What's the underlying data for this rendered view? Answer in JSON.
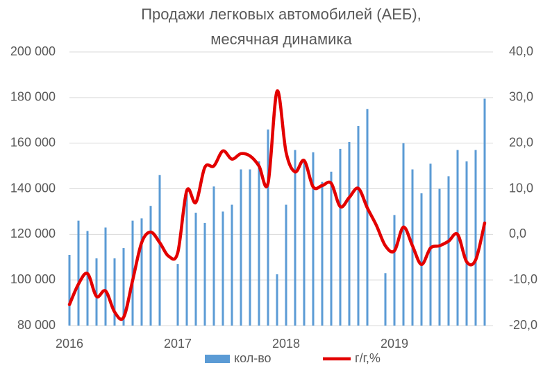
{
  "chart_data": {
    "type": "combo",
    "title": [
      "Продажи легковых автомобилей (АЕБ),",
      "месячная динамика"
    ],
    "categories": [
      "2016",
      null,
      null,
      null,
      null,
      null,
      null,
      null,
      null,
      null,
      null,
      null,
      "2017",
      null,
      null,
      null,
      null,
      null,
      null,
      null,
      null,
      null,
      null,
      null,
      "2018",
      null,
      null,
      null,
      null,
      null,
      null,
      null,
      null,
      null,
      null,
      null,
      "2019",
      null,
      null,
      null,
      null,
      null,
      null,
      null,
      null,
      null,
      null
    ],
    "series": [
      {
        "name": "кол-во",
        "type": "bar",
        "color": "#5b9bd5",
        "values": [
          111000,
          126000,
          121500,
          109500,
          123000,
          109500,
          114000,
          126000,
          127000,
          132500,
          146000,
          null,
          107000,
          138000,
          129500,
          125000,
          141000,
          130000,
          133000,
          148500,
          148500,
          152000,
          166000,
          102500,
          133000,
          157000,
          153000,
          156000,
          143000,
          147500,
          157500,
          160500,
          167500,
          175000,
          null,
          103000,
          128500,
          160000,
          148500,
          138000,
          151000,
          140000,
          145500,
          157000,
          152000,
          157000,
          179500
        ]
      },
      {
        "name": "г/г,%",
        "type": "line",
        "axis": "y2",
        "color": "#e30000",
        "values": [
          -15.4,
          -10.9,
          -8.6,
          -13.6,
          -12.4,
          -17,
          -18.2,
          -10.1,
          -1.8,
          0.5,
          -1.8,
          -4.8,
          -4,
          9.6,
          7,
          14.7,
          15,
          18.3,
          16.5,
          17.7,
          17.2,
          15,
          11.2,
          31.4,
          18,
          13.7,
          16.2,
          10.4,
          10.7,
          11.2,
          6.1,
          8.1,
          10.1,
          5.8,
          2,
          -2.5,
          -3.6,
          1.6,
          -2.5,
          -6.6,
          -3,
          -2.5,
          -1.5,
          0,
          -6,
          -5.6,
          2.5
        ]
      }
    ],
    "ylim": [
      80000,
      200000
    ],
    "yticks": [
      {
        "value": 80000,
        "label": "80 000"
      },
      {
        "value": 100000,
        "label": "100 000"
      },
      {
        "value": 120000,
        "label": "120 000"
      },
      {
        "value": 140000,
        "label": "140 000"
      },
      {
        "value": 160000,
        "label": "160 000"
      },
      {
        "value": 180000,
        "label": "180 000"
      },
      {
        "value": 200000,
        "label": "200 000"
      }
    ],
    "y2lim": [
      -20,
      40
    ],
    "y2ticks": [
      {
        "value": -20,
        "label": "-20,0"
      },
      {
        "value": -10,
        "label": "-10,0"
      },
      {
        "value": 0,
        "label": "0,0"
      },
      {
        "value": 10,
        "label": "10,0"
      },
      {
        "value": 20,
        "label": "20,0"
      },
      {
        "value": 30,
        "label": "30,0"
      },
      {
        "value": 40,
        "label": "40,0"
      }
    ],
    "grid": true,
    "legend": "bottom"
  }
}
